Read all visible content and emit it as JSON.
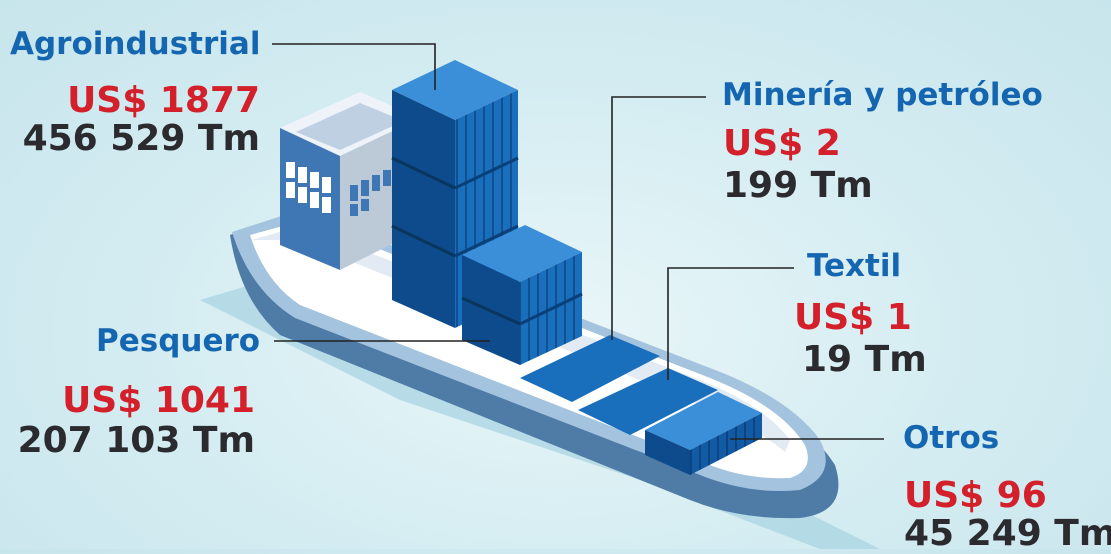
{
  "colors": {
    "category": "#1566b0",
    "value": "#d3202b",
    "tonnage": "#2b2b2f",
    "container": "#1a6fbd",
    "hull": "#4f7ea9",
    "background": "#d8eef3"
  },
  "categories": [
    {
      "id": "agroindustrial",
      "name": "Agroindustrial",
      "value": "US$ 1877",
      "tonnage": "456 529 Tm"
    },
    {
      "id": "mineria",
      "name": "Minería y petróleo",
      "value": "US$ 2",
      "tonnage": "199 Tm"
    },
    {
      "id": "textil",
      "name": "Textil",
      "value": "US$ 1",
      "tonnage": "19 Tm"
    },
    {
      "id": "pesquero",
      "name": "Pesquero",
      "value": "US$ 1041",
      "tonnage": "207 103 Tm"
    },
    {
      "id": "otros",
      "name": "Otros",
      "value": "US$ 96",
      "tonnage": "45 249 Tm"
    }
  ]
}
